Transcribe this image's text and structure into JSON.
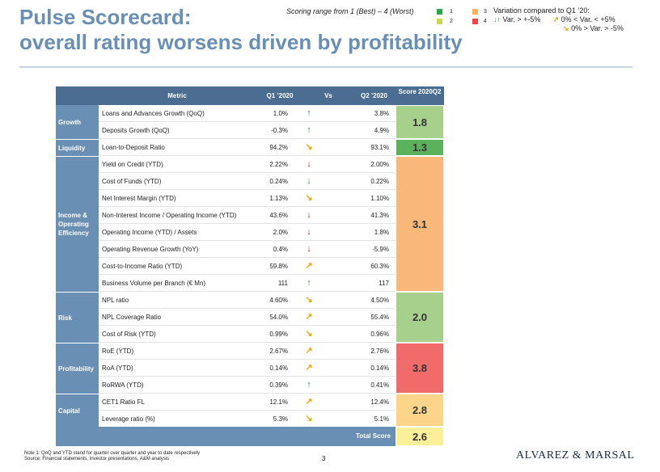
{
  "title": {
    "line1": "Pulse Scorecard:",
    "line2": "overall rating worsens driven by profitability"
  },
  "legend": {
    "range_text": "Scoring range from 1 (Best) – 4 (Worst)",
    "items": [
      {
        "label": "1",
        "color": "#2aa84a"
      },
      {
        "label": "2",
        "color": "#c9d94a"
      },
      {
        "label": "3",
        "color": "#f7b25a"
      },
      {
        "label": "4",
        "color": "#ee4444"
      }
    ],
    "variation_title": "Variation compared to Q1 ’20:",
    "variation_items": [
      {
        "arrows": "↓↑",
        "text": "Var. > +-5%"
      },
      {
        "arrows": "↗",
        "text": "0% < Var. < +5%"
      },
      {
        "arrows": "↘",
        "text": "0% > Var. > -5%"
      }
    ]
  },
  "table": {
    "headers": {
      "metric": "Metric",
      "q1": "Q1 ’2020",
      "vs": "Vs",
      "q2": "Q2 ’2020",
      "score": "Score 2020Q2"
    },
    "categories": [
      {
        "name": "Growth",
        "score": "1.8",
        "score_color": "#a8d08d"
      },
      {
        "name": "Liquidity",
        "score": "1.3",
        "score_color": "#5cb15c"
      },
      {
        "name": "Income & Operating Efficiency",
        "score": "3.1",
        "score_color": "#f9b87a"
      },
      {
        "name": "Risk",
        "score": "2.0",
        "score_color": "#a8d08d"
      },
      {
        "name": "Profitability",
        "score": "3.8",
        "score_color": "#f16b6b"
      },
      {
        "name": "Capital",
        "score": "2.8",
        "score_color": "#fcd48a"
      }
    ],
    "rows": [
      {
        "metric": "Loans and Advances Growth (QoQ)",
        "q1": "1.0%",
        "arrow": "↑",
        "arrow_color": "#22a23a",
        "q2": "3.8%"
      },
      {
        "metric": "Deposits Growth (QoQ)",
        "q1": "-0.3%",
        "arrow": "↑",
        "arrow_color": "#22a23a",
        "q2": "4.9%"
      },
      {
        "metric": "Loan-to-Deposit Ratio",
        "q1": "94.2%",
        "arrow": "↘",
        "arrow_color": "#f2a30a",
        "q2": "93.1%"
      },
      {
        "metric": "Yield on Credit (YTD)",
        "q1": "2.22%",
        "arrow": "↓",
        "arrow_color": "#d42121",
        "q2": "2.00%"
      },
      {
        "metric": "Cost of Funds (YTD)",
        "q1": "0.24%",
        "arrow": "↓",
        "arrow_color": "#22a23a",
        "q2": "0.22%"
      },
      {
        "metric": "Net Interest Margin (YTD)",
        "q1": "1.13%",
        "arrow": "↘",
        "arrow_color": "#f2a30a",
        "q2": "1.10%"
      },
      {
        "metric": "Non-Interest Income / Operating Income (YTD)",
        "q1": "43.6%",
        "arrow": "↓",
        "arrow_color": "#d42121",
        "q2": "41.3%"
      },
      {
        "metric": "Operating Income (YTD) / Assets",
        "q1": "2.0%",
        "arrow": "↓",
        "arrow_color": "#d42121",
        "q2": "1.8%"
      },
      {
        "metric": "Operating Revenue Growth (YoY)",
        "q1": "0.4%",
        "arrow": "↓",
        "arrow_color": "#d42121",
        "q2": "-5.9%"
      },
      {
        "metric": "Cost-to-Income Ratio (YTD)",
        "q1": "59.8%",
        "arrow": "↗",
        "arrow_color": "#f2a30a",
        "q2": "60.3%"
      },
      {
        "metric": "Business Volume per Branch (€ Mn)",
        "q1": "111",
        "arrow": "↑",
        "arrow_color": "#22a23a",
        "q2": "117"
      },
      {
        "metric": "NPL ratio",
        "q1": "4.60%",
        "arrow": "↘",
        "arrow_color": "#f2a30a",
        "q2": "4.50%"
      },
      {
        "metric": "NPL Coverage Ratio",
        "q1": "54.0%",
        "arrow": "↗",
        "arrow_color": "#f2a30a",
        "q2": "55.4%"
      },
      {
        "metric": "Cost of Risk (YTD)",
        "q1": "0.99%",
        "arrow": "↘",
        "arrow_color": "#f2a30a",
        "q2": "0.96%"
      },
      {
        "metric": "RoE (YTD)",
        "q1": "2.67%",
        "arrow": "↗",
        "arrow_color": "#f2a30a",
        "q2": "2.76%"
      },
      {
        "metric": "RoA (YTD)",
        "q1": "0.14%",
        "arrow": "↗",
        "arrow_color": "#f2a30a",
        "q2": "0.14%"
      },
      {
        "metric": "RoRWA (YTD)",
        "q1": "0.39%",
        "arrow": "↑",
        "arrow_color": "#22a23a",
        "q2": "0.41%"
      },
      {
        "metric": "CET1 Ratio FL",
        "q1": "12.1%",
        "arrow": "↗",
        "arrow_color": "#f2a30a",
        "q2": "12.4%"
      },
      {
        "metric": "Leverage ratio (%)",
        "q1": "5.3%",
        "arrow": "↘",
        "arrow_color": "#f2a30a",
        "q2": "5.1%"
      }
    ],
    "total_label": "Total Score",
    "total_score": "2.6",
    "total_color": "#fcef9a"
  },
  "footer": {
    "note": "Note 1: QoQ and YTD stand for quarter over quarter and year to date respectively",
    "source": "Source: Financial statements, Investor presentations, A&M analysis",
    "page": "3",
    "logo": "ALVAREZ & MARSAL"
  }
}
